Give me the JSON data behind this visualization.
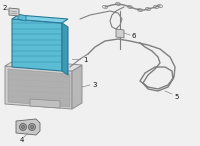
{
  "bg_color": "#f0f0f0",
  "battery_fill": "#5bbdd4",
  "battery_right_fill": "#3a9ab8",
  "battery_top_fill": "#80d0e8",
  "battery_edge": "#2a7a98",
  "tray_fill": "#c8c8c8",
  "tray_dark": "#a8a8a8",
  "tray_edge": "#888888",
  "line_color": "#808080",
  "label_color": "#111111",
  "label_fs": 5.0,
  "white": "#ffffff"
}
